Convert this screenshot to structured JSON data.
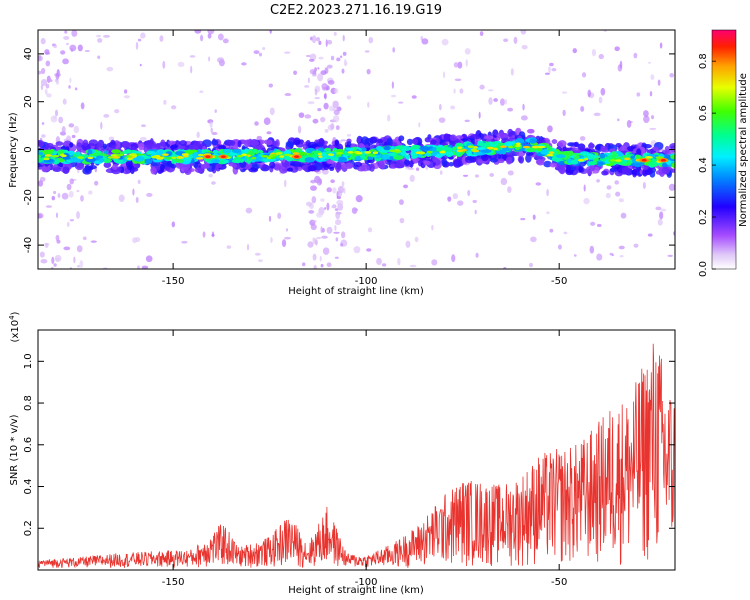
{
  "title": "C2E2.2023.271.16.19.G19",
  "chart_data": [
    {
      "type": "heatmap",
      "xlabel": "Height of straight line (km)",
      "ylabel": "Frequency (Hz)",
      "xlim": [
        -185,
        -20
      ],
      "ylim": [
        -50,
        50
      ],
      "xticks": [
        -150,
        -100,
        -50
      ],
      "yticks": [
        -40,
        -20,
        0,
        20,
        40
      ],
      "colorbar": {
        "label": "Normalized spectral amplitude",
        "range": [
          0,
          0.92
        ],
        "ticks": [
          "0.0",
          "0.2",
          "0.4",
          "0.6",
          "0.8"
        ]
      },
      "ridge_frequency_hz": [
        {
          "x": -185,
          "y": -3
        },
        {
          "x": -150,
          "y": -3
        },
        {
          "x": -120,
          "y": -2.5
        },
        {
          "x": -100,
          "y": -2
        },
        {
          "x": -75,
          "y": 0
        },
        {
          "x": -57,
          "y": 2
        },
        {
          "x": -50,
          "y": -3.5
        },
        {
          "x": -35,
          "y": -4
        },
        {
          "x": -20,
          "y": -4.5
        }
      ],
      "hotspots": [
        {
          "x": -141,
          "y": -3
        },
        {
          "x": -137,
          "y": -3
        },
        {
          "x": -118,
          "y": -3
        },
        {
          "x": -28,
          "y": -4.5
        },
        {
          "x": -23,
          "y": -4.5
        }
      ]
    },
    {
      "type": "line",
      "xlabel": "Height of straight line (km)",
      "ylabel": "SNR (10 * v/v)",
      "yscale_label": "(x10",
      "yscale_exp": "4",
      "yscale_close": ")",
      "xlim": [
        -185,
        -20
      ],
      "ylim": [
        0,
        1.15
      ],
      "xticks": [
        -150,
        -100,
        -50
      ],
      "yticks": [
        "0.2",
        "0.4",
        "0.6",
        "0.8",
        "1.0"
      ],
      "color": "#e8332e",
      "series": [
        {
          "values_x10e4": [
            {
              "x": -185,
              "y": 0.04
            },
            {
              "x": -175,
              "y": 0.05
            },
            {
              "x": -165,
              "y": 0.07
            },
            {
              "x": -155,
              "y": 0.08
            },
            {
              "x": -145,
              "y": 0.09
            },
            {
              "x": -137,
              "y": 0.22
            },
            {
              "x": -133,
              "y": 0.1
            },
            {
              "x": -125,
              "y": 0.15
            },
            {
              "x": -120,
              "y": 0.26
            },
            {
              "x": -115,
              "y": 0.12
            },
            {
              "x": -110,
              "y": 0.3
            },
            {
              "x": -105,
              "y": 0.07
            },
            {
              "x": -100,
              "y": 0.06
            },
            {
              "x": -93,
              "y": 0.12
            },
            {
              "x": -87,
              "y": 0.2
            },
            {
              "x": -80,
              "y": 0.35
            },
            {
              "x": -75,
              "y": 0.43
            },
            {
              "x": -70,
              "y": 0.42
            },
            {
              "x": -65,
              "y": 0.4
            },
            {
              "x": -60,
              "y": 0.45
            },
            {
              "x": -55,
              "y": 0.55
            },
            {
              "x": -45,
              "y": 0.6
            },
            {
              "x": -40,
              "y": 0.7
            },
            {
              "x": -36,
              "y": 0.8
            },
            {
              "x": -32,
              "y": 0.83
            },
            {
              "x": -30,
              "y": 0.9
            },
            {
              "x": -25,
              "y": 1.15
            },
            {
              "x": -22,
              "y": 0.9
            },
            {
              "x": -20,
              "y": 0.85
            }
          ]
        }
      ]
    }
  ]
}
